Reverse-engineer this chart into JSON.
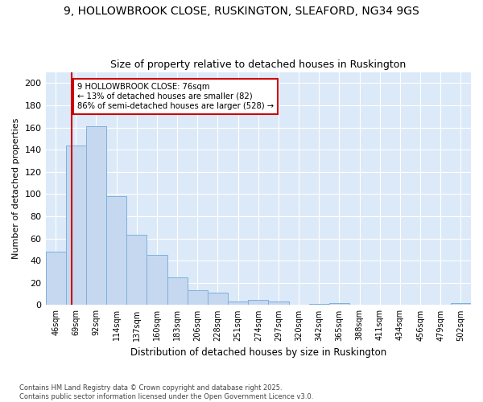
{
  "title1": "9, HOLLOWBROOK CLOSE, RUSKINGTON, SLEAFORD, NG34 9GS",
  "title2": "Size of property relative to detached houses in Ruskington",
  "xlabel": "Distribution of detached houses by size in Ruskington",
  "ylabel": "Number of detached properties",
  "categories": [
    "46sqm",
    "69sqm",
    "92sqm",
    "114sqm",
    "137sqm",
    "160sqm",
    "183sqm",
    "206sqm",
    "228sqm",
    "251sqm",
    "274sqm",
    "297sqm",
    "320sqm",
    "342sqm",
    "365sqm",
    "388sqm",
    "411sqm",
    "434sqm",
    "456sqm",
    "479sqm",
    "502sqm"
  ],
  "values": [
    48,
    144,
    161,
    98,
    63,
    45,
    25,
    13,
    11,
    3,
    5,
    3,
    0,
    1,
    2,
    0,
    0,
    0,
    0,
    0,
    2
  ],
  "bar_color": "#c5d8f0",
  "bar_edge_color": "#7eb0d9",
  "property_line_color": "#cc0000",
  "annotation_text": "9 HOLLOWBROOK CLOSE: 76sqm\n← 13% of detached houses are smaller (82)\n86% of semi-detached houses are larger (528) →",
  "annotation_box_color": "#ffffff",
  "annotation_box_edge": "#cc0000",
  "ylim": [
    0,
    210
  ],
  "yticks": [
    0,
    20,
    40,
    60,
    80,
    100,
    120,
    140,
    160,
    180,
    200
  ],
  "background_color": "#dce9f8",
  "grid_color": "#ffffff",
  "fig_bg_color": "#ffffff",
  "footer": "Contains HM Land Registry data © Crown copyright and database right 2025.\nContains public sector information licensed under the Open Government Licence v3.0.",
  "figsize": [
    6.0,
    5.0
  ],
  "dpi": 100
}
